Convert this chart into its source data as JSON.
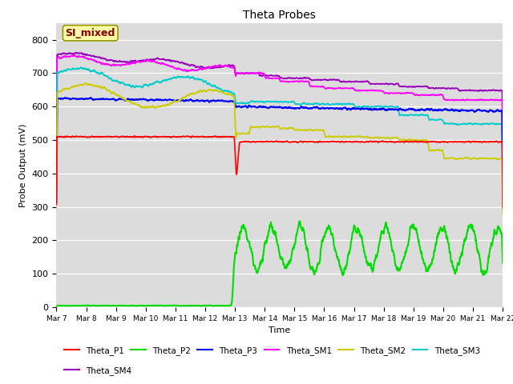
{
  "title": "Theta Probes",
  "xlabel": "Time",
  "ylabel": "Probe Output (mV)",
  "ylim": [
    0,
    850
  ],
  "yticks": [
    0,
    100,
    200,
    300,
    400,
    500,
    600,
    700,
    800
  ],
  "x_tick_labels": [
    "Mar 7",
    "Mar 8",
    "Mar 9",
    "Mar 10",
    "Mar 11",
    "Mar 12",
    "Mar 13",
    "Mar 14",
    "Mar 15",
    "Mar 16",
    "Mar 17",
    "Mar 18",
    "Mar 19",
    "Mar 20",
    "Mar 21",
    "Mar 22"
  ],
  "background_color": "#dcdcdc",
  "annotation_text": "SI_mixed",
  "annotation_color": "#8b0000",
  "annotation_bg": "#ffffaa",
  "colors": {
    "Theta_P1": "#ff0000",
    "Theta_P2": "#00dd00",
    "Theta_P3": "#0000ff",
    "Theta_SM1": "#ff00ff",
    "Theta_SM2": "#cccc00",
    "Theta_SM3": "#00cccc",
    "Theta_SM4": "#9900bb"
  }
}
